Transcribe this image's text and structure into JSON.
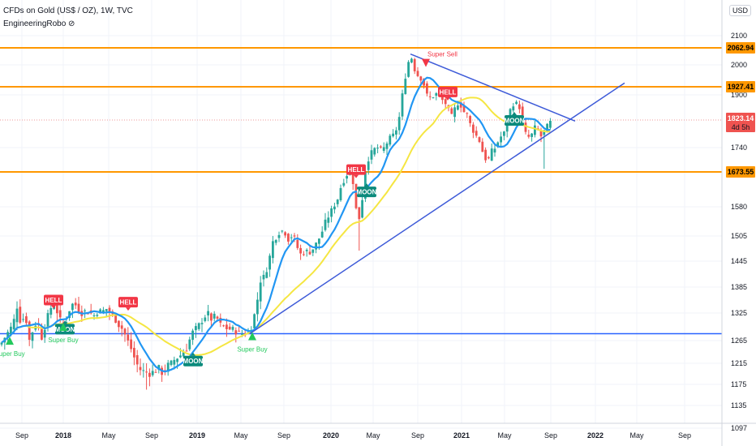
{
  "header": {
    "title": "CFDs on Gold (US$ / OZ), 1W, TVC",
    "indicator": "EngineeringRobo ⊘",
    "currency": "USD"
  },
  "colors": {
    "up": "#26a69a",
    "down": "#ef5350",
    "ma_fast": "#2196f3",
    "ma_slow": "#f5e642",
    "trend": "#3d5ad8",
    "level": "#ff9800",
    "support": "#2962ff",
    "hell": "#f23645",
    "moon": "#0b8a7c",
    "buy": "#22c95c",
    "sell": "#f23645"
  },
  "chart_data": {
    "type": "candlestick",
    "timeframe": "1W",
    "symbol": "CFDs on Gold (US$ / OZ)",
    "ylim": [
      1097,
      2150
    ],
    "y_ticks": [
      2100,
      2000,
      1900,
      1740,
      1580,
      1505,
      1445,
      1385,
      1325,
      1265,
      1215,
      1175,
      1135,
      1097
    ],
    "x_ticks": [
      {
        "label": "Sep",
        "bold": false
      },
      {
        "label": "2018",
        "bold": true
      },
      {
        "label": "May",
        "bold": false
      },
      {
        "label": "Sep",
        "bold": false
      },
      {
        "label": "2019",
        "bold": true
      },
      {
        "label": "May",
        "bold": false
      },
      {
        "label": "Sep",
        "bold": false
      },
      {
        "label": "2020",
        "bold": true
      },
      {
        "label": "May",
        "bold": false
      },
      {
        "label": "Sep",
        "bold": false
      },
      {
        "label": "2021",
        "bold": true
      },
      {
        "label": "May",
        "bold": false
      },
      {
        "label": "Sep",
        "bold": false
      },
      {
        "label": "2022",
        "bold": true
      },
      {
        "label": "May",
        "bold": false
      },
      {
        "label": "Sep",
        "bold": false
      }
    ],
    "price_levels": [
      {
        "label": "2062.94",
        "value": 2062.94,
        "color": "#ff9800"
      },
      {
        "label": "1927.41",
        "value": 1927.41,
        "color": "#ff9800"
      },
      {
        "label": "1673.55",
        "value": 1673.55,
        "color": "#ff9800"
      }
    ],
    "support_level": {
      "value": 1280
    },
    "current_price": {
      "label": "1823.14",
      "countdown": "4d 5h",
      "value": 1823.14
    },
    "anchors": [
      {
        "x": 0,
        "y": 1255
      },
      {
        "x": 8,
        "y": 1278
      },
      {
        "x": 16,
        "y": 1300
      },
      {
        "x": 21,
        "y": 1340
      },
      {
        "x": 26,
        "y": 1300
      },
      {
        "x": 31,
        "y": 1325
      },
      {
        "x": 36,
        "y": 1265
      },
      {
        "x": 41,
        "y": 1290
      },
      {
        "x": 46,
        "y": 1310
      },
      {
        "x": 51,
        "y": 1270
      },
      {
        "x": 56,
        "y": 1300
      },
      {
        "x": 61,
        "y": 1330
      },
      {
        "x": 66,
        "y": 1350
      },
      {
        "x": 71,
        "y": 1325
      },
      {
        "x": 76,
        "y": 1300
      },
      {
        "x": 81,
        "y": 1305
      },
      {
        "x": 86,
        "y": 1335
      },
      {
        "x": 91,
        "y": 1350
      },
      {
        "x": 96,
        "y": 1335
      },
      {
        "x": 101,
        "y": 1325
      },
      {
        "x": 106,
        "y": 1330
      },
      {
        "x": 111,
        "y": 1325
      },
      {
        "x": 116,
        "y": 1320
      },
      {
        "x": 121,
        "y": 1330
      },
      {
        "x": 126,
        "y": 1328
      },
      {
        "x": 131,
        "y": 1335
      },
      {
        "x": 136,
        "y": 1325
      },
      {
        "x": 141,
        "y": 1315
      },
      {
        "x": 146,
        "y": 1300
      },
      {
        "x": 151,
        "y": 1290
      },
      {
        "x": 156,
        "y": 1270
      },
      {
        "x": 161,
        "y": 1250
      },
      {
        "x": 166,
        "y": 1225
      },
      {
        "x": 171,
        "y": 1205
      },
      {
        "x": 176,
        "y": 1200
      },
      {
        "x": 181,
        "y": 1198
      },
      {
        "x": 186,
        "y": 1195
      },
      {
        "x": 191,
        "y": 1202
      },
      {
        "x": 196,
        "y": 1205
      },
      {
        "x": 201,
        "y": 1195
      },
      {
        "x": 206,
        "y": 1210
      },
      {
        "x": 211,
        "y": 1215
      },
      {
        "x": 216,
        "y": 1225
      },
      {
        "x": 221,
        "y": 1230
      },
      {
        "x": 226,
        "y": 1240
      },
      {
        "x": 231,
        "y": 1250
      },
      {
        "x": 236,
        "y": 1280
      },
      {
        "x": 241,
        "y": 1290
      },
      {
        "x": 246,
        "y": 1300
      },
      {
        "x": 251,
        "y": 1315
      },
      {
        "x": 256,
        "y": 1325
      },
      {
        "x": 261,
        "y": 1310
      },
      {
        "x": 266,
        "y": 1320
      },
      {
        "x": 271,
        "y": 1300
      },
      {
        "x": 276,
        "y": 1295
      },
      {
        "x": 281,
        "y": 1290
      },
      {
        "x": 286,
        "y": 1290
      },
      {
        "x": 291,
        "y": 1285
      },
      {
        "x": 296,
        "y": 1280
      },
      {
        "x": 301,
        "y": 1280
      },
      {
        "x": 306,
        "y": 1282
      },
      {
        "x": 311,
        "y": 1300
      },
      {
        "x": 316,
        "y": 1340
      },
      {
        "x": 321,
        "y": 1400
      },
      {
        "x": 326,
        "y": 1410
      },
      {
        "x": 331,
        "y": 1440
      },
      {
        "x": 336,
        "y": 1490
      },
      {
        "x": 341,
        "y": 1505
      },
      {
        "x": 346,
        "y": 1520
      },
      {
        "x": 351,
        "y": 1515
      },
      {
        "x": 356,
        "y": 1495
      },
      {
        "x": 361,
        "y": 1510
      },
      {
        "x": 366,
        "y": 1480
      },
      {
        "x": 371,
        "y": 1460
      },
      {
        "x": 376,
        "y": 1470
      },
      {
        "x": 381,
        "y": 1465
      },
      {
        "x": 386,
        "y": 1475
      },
      {
        "x": 391,
        "y": 1490
      },
      {
        "x": 396,
        "y": 1510
      },
      {
        "x": 401,
        "y": 1540
      },
      {
        "x": 406,
        "y": 1560
      },
      {
        "x": 411,
        "y": 1580
      },
      {
        "x": 416,
        "y": 1600
      },
      {
        "x": 421,
        "y": 1640
      },
      {
        "x": 426,
        "y": 1660
      },
      {
        "x": 431,
        "y": 1680
      },
      {
        "x": 436,
        "y": 1640
      },
      {
        "x": 441,
        "y": 1530
      },
      {
        "x": 446,
        "y": 1590
      },
      {
        "x": 451,
        "y": 1690
      },
      {
        "x": 456,
        "y": 1720
      },
      {
        "x": 461,
        "y": 1735
      },
      {
        "x": 466,
        "y": 1740
      },
      {
        "x": 471,
        "y": 1730
      },
      {
        "x": 476,
        "y": 1750
      },
      {
        "x": 481,
        "y": 1770
      },
      {
        "x": 486,
        "y": 1780
      },
      {
        "x": 491,
        "y": 1810
      },
      {
        "x": 496,
        "y": 1900
      },
      {
        "x": 501,
        "y": 1980
      },
      {
        "x": 506,
        "y": 2040
      },
      {
        "x": 511,
        "y": 1985
      },
      {
        "x": 516,
        "y": 1960
      },
      {
        "x": 521,
        "y": 1950
      },
      {
        "x": 526,
        "y": 1900
      },
      {
        "x": 531,
        "y": 1890
      },
      {
        "x": 536,
        "y": 1900
      },
      {
        "x": 541,
        "y": 1910
      },
      {
        "x": 546,
        "y": 1880
      },
      {
        "x": 551,
        "y": 1870
      },
      {
        "x": 556,
        "y": 1830
      },
      {
        "x": 561,
        "y": 1860
      },
      {
        "x": 566,
        "y": 1880
      },
      {
        "x": 571,
        "y": 1850
      },
      {
        "x": 576,
        "y": 1840
      },
      {
        "x": 581,
        "y": 1800
      },
      {
        "x": 586,
        "y": 1780
      },
      {
        "x": 591,
        "y": 1760
      },
      {
        "x": 596,
        "y": 1720
      },
      {
        "x": 601,
        "y": 1700
      },
      {
        "x": 606,
        "y": 1730
      },
      {
        "x": 611,
        "y": 1740
      },
      {
        "x": 616,
        "y": 1770
      },
      {
        "x": 621,
        "y": 1780
      },
      {
        "x": 626,
        "y": 1830
      },
      {
        "x": 631,
        "y": 1870
      },
      {
        "x": 636,
        "y": 1875
      },
      {
        "x": 641,
        "y": 1860
      },
      {
        "x": 646,
        "y": 1790
      },
      {
        "x": 651,
        "y": 1770
      },
      {
        "x": 656,
        "y": 1780
      },
      {
        "x": 661,
        "y": 1810
      },
      {
        "x": 666,
        "y": 1770
      },
      {
        "x": 671,
        "y": 1790
      },
      {
        "x": 676,
        "y": 1810
      },
      {
        "x": 681,
        "y": 1823.14
      }
    ],
    "wick_outliers": [
      {
        "x": 669,
        "low": 1682
      },
      {
        "x": 181,
        "low": 1165
      },
      {
        "x": 441,
        "low": 1470
      }
    ],
    "trendlines": [
      {
        "from": {
          "x": 506,
          "y": 2040
        },
        "to": {
          "x": 709,
          "y": 1820
        }
      },
      {
        "from": {
          "x": 308,
          "y": 1280
        },
        "to": {
          "x": 770,
          "y": 1940
        }
      }
    ],
    "tags": [
      {
        "label": "HELL",
        "x": 66,
        "y": 1355
      },
      {
        "label": "HELL",
        "x": 158,
        "y": 1350
      },
      {
        "label": "HELL",
        "x": 439,
        "y": 1680
      },
      {
        "label": "HELL",
        "x": 552,
        "y": 1910
      },
      {
        "label": "MOON",
        "x": 80,
        "y": 1290
      },
      {
        "label": "MOON",
        "x": 238,
        "y": 1220
      },
      {
        "label": "MOON",
        "x": 452,
        "y": 1620
      },
      {
        "label": "MOON",
        "x": 634,
        "y": 1822
      }
    ],
    "signals": [
      {
        "label": "Super Buy",
        "x": 12,
        "y": 1270
      },
      {
        "label": "Super Buy",
        "x": 78,
        "y": 1300
      },
      {
        "label": "Super Buy",
        "x": 311,
        "y": 1280
      },
      {
        "label": "Super Sell",
        "x": 525,
        "y": 2040
      }
    ]
  }
}
